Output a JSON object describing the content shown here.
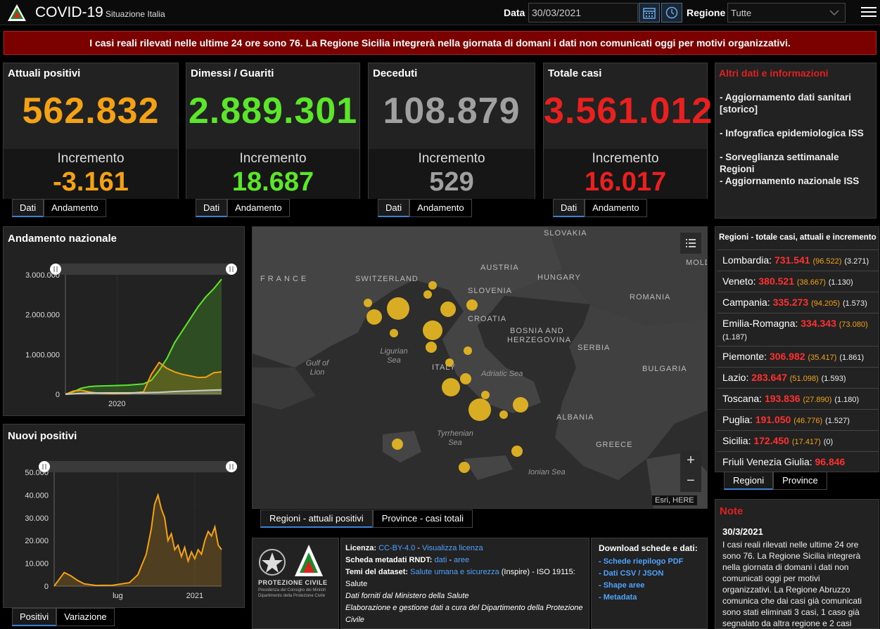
{
  "header": {
    "title": "COVID-19",
    "subtitle": "Situazione Italia",
    "date_label": "Data",
    "date_value": "30/03/2021",
    "region_label": "Regione",
    "region_value": "Tutte"
  },
  "alert": "I casi reali rilevati nelle ultime 24 ore sono 76. La Regione Sicilia integrerà nella giornata di domani i dati non comunicati oggi per motivi organizzativi.",
  "cards": [
    {
      "title": "Attuali positivi",
      "value": "562.832",
      "inc_label": "Incremento",
      "inc": "-3.161",
      "color": "#f3a216",
      "tabs": [
        "Dati",
        "Andamento"
      ]
    },
    {
      "title": "Dimessi / Guariti",
      "value": "2.889.301",
      "inc_label": "Incremento",
      "inc": "18.687",
      "color": "#5ce62b",
      "tabs": [
        "Dati",
        "Andamento"
      ]
    },
    {
      "title": "Deceduti",
      "value": "108.879",
      "inc_label": "Incremento",
      "inc": "529",
      "color": "#a0a0a0",
      "tabs": [
        "Dati",
        "Andamento"
      ]
    },
    {
      "title": "Totale casi",
      "value": "3.561.012",
      "inc_label": "Incremento",
      "inc": "16.017",
      "color": "#e82020",
      "tabs": [
        "Dati",
        "Andamento"
      ]
    }
  ],
  "info": {
    "title": "Altri dati e informazioni",
    "links": [
      "- Aggiornamento dati sanitari [storico]",
      "- Infografica epidemiologica ISS",
      "- Sorveglianza settimanale Regioni",
      "- Aggiornamento nazionale ISS"
    ]
  },
  "chart_data": [
    {
      "type": "line",
      "title": "Andamento nazionale",
      "x_ticks": [
        "2020"
      ],
      "y_ticks": [
        "0",
        "1.000.000",
        "2.000.000",
        "3.000.000"
      ],
      "ylim": [
        0,
        3000000
      ],
      "series": [
        {
          "color": "#5ce62b",
          "x": [
            0,
            0.05,
            0.1,
            0.15,
            0.2,
            0.3,
            0.4,
            0.5,
            0.55,
            0.6,
            0.65,
            0.7,
            0.75,
            0.8,
            0.85,
            0.9,
            0.95,
            1.0
          ],
          "values": [
            0,
            60000,
            150000,
            190000,
            205000,
            215000,
            230000,
            260000,
            350000,
            600000,
            900000,
            1300000,
            1600000,
            1900000,
            2200000,
            2450000,
            2650000,
            2889301
          ]
        },
        {
          "color": "#f3a216",
          "x": [
            0,
            0.05,
            0.1,
            0.15,
            0.2,
            0.3,
            0.4,
            0.5,
            0.55,
            0.6,
            0.65,
            0.7,
            0.75,
            0.8,
            0.85,
            0.9,
            0.95,
            1.0
          ],
          "values": [
            0,
            80000,
            100000,
            60000,
            30000,
            15000,
            20000,
            60000,
            500000,
            800000,
            650000,
            560000,
            500000,
            460000,
            420000,
            430000,
            540000,
            562832
          ]
        },
        {
          "color": "#cccccc",
          "x": [
            0,
            0.05,
            0.1,
            0.2,
            0.3,
            0.4,
            0.5,
            0.6,
            0.7,
            0.8,
            0.9,
            1.0
          ],
          "values": [
            0,
            10000,
            25000,
            34000,
            35000,
            36000,
            38000,
            50000,
            70000,
            85000,
            98000,
            108879
          ]
        }
      ],
      "tabs": []
    },
    {
      "type": "bar",
      "title": "Nuovi positivi",
      "x_ticks": [
        "lug",
        "2021"
      ],
      "y_ticks": [
        "0",
        "10.000",
        "20.000",
        "30.000",
        "40.000",
        "50.000"
      ],
      "ylim": [
        0,
        50000
      ],
      "series": [
        {
          "color": "#f3a216",
          "x": [
            0,
            0.03,
            0.06,
            0.1,
            0.14,
            0.18,
            0.25,
            0.35,
            0.45,
            0.5,
            0.55,
            0.58,
            0.6,
            0.62,
            0.64,
            0.66,
            0.68,
            0.7,
            0.72,
            0.74,
            0.76,
            0.78,
            0.8,
            0.82,
            0.84,
            0.86,
            0.88,
            0.9,
            0.92,
            0.94,
            0.96,
            0.98,
            1.0
          ],
          "values": [
            0,
            3000,
            6000,
            4500,
            2500,
            1000,
            300,
            400,
            1500,
            5000,
            14000,
            25000,
            36000,
            40000,
            34000,
            30000,
            20000,
            23000,
            16000,
            18000,
            13000,
            17000,
            11000,
            15000,
            12000,
            16000,
            14000,
            20000,
            24000,
            22000,
            26000,
            18000,
            16017
          ]
        }
      ],
      "tabs": [
        "Positivi",
        "Variazione"
      ]
    }
  ],
  "map": {
    "countries": [
      "SLOVAKIA",
      "MOLD",
      "AUSTRIA",
      "HUNGARY",
      "FRANCE",
      "SWITZERLAND",
      "SLOVENIA",
      "ROMANIA",
      "CROATIA",
      "BOSNIA AND",
      "HERZEGOVINA",
      "SERBIA",
      "BULGARIA",
      "ITALY",
      "ALBANIA",
      "GREECE"
    ],
    "seas": [
      "Gulf of Lion",
      "Ligurian Sea",
      "Adriatic Sea",
      "Tyrrhenian Sea",
      "Ionian Sea"
    ],
    "attribution": "Esri, HERE",
    "tabs": [
      "Regioni - attuali positivi",
      "Province - casi totali"
    ]
  },
  "regions": {
    "title": "Regioni - totale casi, attuali e incremento",
    "rows": [
      {
        "name": "Lombardia:",
        "total": "731.541",
        "att": "(96.522)",
        "inc": "(3.271)"
      },
      {
        "name": "Veneto:",
        "total": "380.521",
        "att": "(38.667)",
        "inc": "(1.130)"
      },
      {
        "name": "Campania:",
        "total": "335.273",
        "att": "(94.205)",
        "inc": "(1.573)"
      },
      {
        "name": "Emilia-Romagna:",
        "total": "334.343",
        "att": "(73.080)",
        "inc": "(1.187)"
      },
      {
        "name": "Piemonte:",
        "total": "306.982",
        "att": "(35.417)",
        "inc": "(1.861)"
      },
      {
        "name": "Lazio:",
        "total": "283.647",
        "att": "(51.098)",
        "inc": "(1.593)"
      },
      {
        "name": "Toscana:",
        "total": "193.836",
        "att": "(27.890)",
        "inc": "(1.180)"
      },
      {
        "name": "Puglia:",
        "total": "191.050",
        "att": "(46.776)",
        "inc": "(1.527)"
      },
      {
        "name": "Sicilia:",
        "total": "172.450",
        "att": "(17.417)",
        "inc": "(0)"
      },
      {
        "name": "Friuli Venezia Giulia:",
        "total": "96.846",
        "att": "",
        "inc": ""
      }
    ],
    "tabs": [
      "Regioni",
      "Province"
    ]
  },
  "notes": {
    "title": "Note",
    "date": "30/3/2021",
    "body": "I casi reali rilevati nelle ultime 24 ore sono 76. La Regione Sicilia integrerà nella giornata di domani i dati non comunicati oggi per motivi organizzativi. La Regione Abruzzo comunica che dai casi già comunicati sono stati eliminati 3 casi, 1 caso già segnalato da altra regione e 2 casi"
  },
  "footer": {
    "logo_text": "PROTEZIONE CIVILE",
    "logo_sub": "Presidenza del Consiglio dei Ministri Dipartimento della Protezione Civile",
    "lic_label": "Licenza:",
    "lic_link": "CC-BY-4.0",
    "lic_sep": " - ",
    "lic_view": "Visualizza licenza",
    "rndt_label": "Scheda metadati RNDT:",
    "rndt_dati": "dati",
    "rndt_aree": "aree",
    "temi_label": "Temi del dataset:",
    "temi_link": "Salute umana e sicurezza",
    "temi_rest": " (Inspire) - ISO 19115: Salute",
    "source1": "Dati forniti dal Ministero della Salute",
    "source2": "Elaborazione e gestione dati a cura del Dipartimento della Protezione Civile",
    "dl_title": "Download schede e dati:",
    "dl_links": [
      "- Schede riepilogo PDF",
      "- Dati CSV / JSON",
      "- Shape aree",
      "- Metadata"
    ]
  }
}
